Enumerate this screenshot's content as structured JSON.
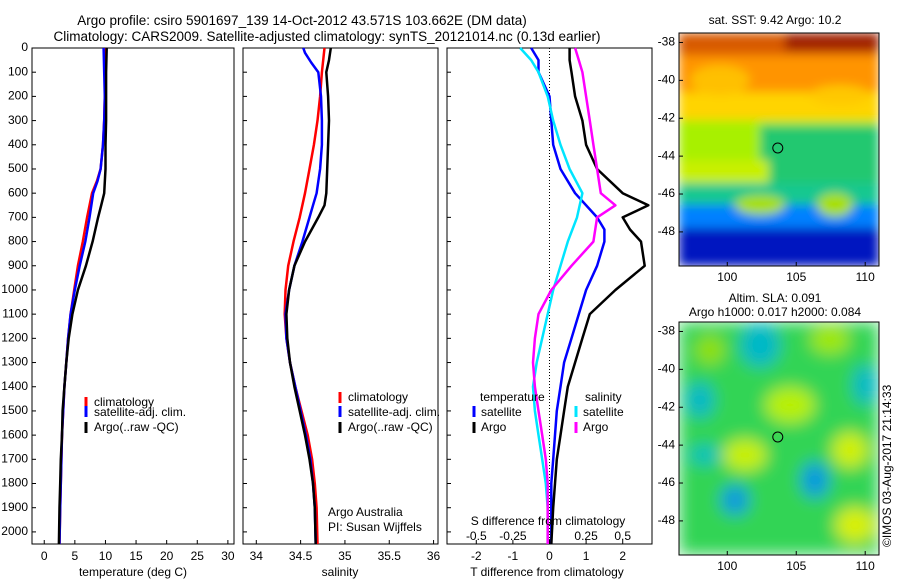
{
  "title": {
    "line1": "Argo profile: csiro 5901697_139 14-Oct-2012 43.571S 103.662E (DM data)",
    "line2": "Climatology: CARS2009. Satellite-adjusted climatology: synTS_20121014.nc (0.13d earlier)"
  },
  "colors": {
    "climatology": "#ff0000",
    "satellite": "#0000ff",
    "argo": "#000000",
    "sat_salinity": "#00e5ff",
    "argo_salinity": "#ff00ff"
  },
  "chart_data": [
    {
      "type": "line",
      "panel": "temperature",
      "xlabel": "temperature (deg C)",
      "xlim": [
        -2,
        31
      ],
      "ylim": [
        2050,
        0
      ],
      "xticks": [
        "0",
        "5",
        "10",
        "15",
        "20",
        "25",
        "30"
      ],
      "yticks": [
        "0",
        "100",
        "200",
        "300",
        "400",
        "500",
        "600",
        "700",
        "800",
        "900",
        "1000",
        "1100",
        "1200",
        "1300",
        "1400",
        "1500",
        "1600",
        "1700",
        "1800",
        "1900",
        "2000"
      ],
      "legend": [
        "climatology",
        "satellite-adj. clim.",
        "Argo(..raw -QC)"
      ],
      "series": [
        {
          "name": "climatology",
          "color": "#ff0000",
          "y": [
            0,
            100,
            200,
            300,
            400,
            500,
            550,
            600,
            700,
            800,
            900,
            1000,
            1100,
            1200,
            1300,
            1400,
            1500,
            1600,
            1700,
            1800,
            1900,
            2050
          ],
          "x": [
            10.0,
            10.0,
            9.9,
            9.8,
            9.6,
            9.2,
            8.6,
            7.8,
            7.0,
            6.3,
            5.5,
            4.9,
            4.3,
            3.9,
            3.6,
            3.3,
            3.1,
            2.9,
            2.8,
            2.7,
            2.6,
            2.5
          ]
        },
        {
          "name": "satellite-adj. clim.",
          "color": "#0000ff",
          "y": [
            0,
            100,
            200,
            300,
            400,
            500,
            550,
            600,
            700,
            800,
            900,
            1000,
            1100,
            1200,
            1300,
            1400,
            1500,
            1600,
            1700,
            1800,
            1900,
            2050
          ],
          "x": [
            9.7,
            9.8,
            9.9,
            9.8,
            9.6,
            9.2,
            8.7,
            8.0,
            7.4,
            6.7,
            5.8,
            5.0,
            4.3,
            3.9,
            3.6,
            3.3,
            3.1,
            2.9,
            2.8,
            2.7,
            2.6,
            2.5
          ]
        },
        {
          "name": "Argo(..raw -QC)",
          "color": "#000000",
          "y": [
            0,
            100,
            200,
            300,
            400,
            500,
            600,
            650,
            700,
            800,
            900,
            1000,
            1100,
            1200,
            1300,
            1400,
            1500,
            1600,
            1700,
            1800,
            1900,
            2050
          ],
          "x": [
            10.2,
            10.1,
            10.1,
            10.1,
            10.0,
            10.0,
            9.8,
            9.3,
            8.8,
            7.9,
            6.8,
            5.5,
            4.6,
            4.0,
            3.6,
            3.3,
            3.0,
            2.9,
            2.7,
            2.6,
            2.5,
            2.4
          ]
        }
      ]
    },
    {
      "type": "line",
      "panel": "salinity",
      "xlabel": "salinity",
      "xlim": [
        33.85,
        36.05
      ],
      "ylim": [
        2050,
        0
      ],
      "xticks": [
        "34",
        "34.5",
        "35",
        "35.5",
        "36"
      ],
      "legend": [
        "climatology",
        "satellite-adj. clim.",
        "Argo(..raw -QC)"
      ],
      "annotation": [
        "Argo Australia",
        "PI: Susan Wijffels"
      ],
      "series": [
        {
          "name": "climatology",
          "color": "#ff0000",
          "y": [
            0,
            100,
            200,
            300,
            400,
            500,
            600,
            700,
            800,
            900,
            1000,
            1100,
            1200,
            1300,
            1400,
            1500,
            1600,
            1700,
            1800,
            1900,
            2050
          ],
          "x": [
            34.77,
            34.74,
            34.72,
            34.69,
            34.65,
            34.6,
            34.55,
            34.49,
            34.42,
            34.36,
            34.33,
            34.32,
            34.34,
            34.38,
            34.44,
            34.51,
            34.58,
            34.63,
            34.66,
            34.68,
            34.69
          ]
        },
        {
          "name": "satellite-adj. clim.",
          "color": "#0000ff",
          "y": [
            0,
            20,
            60,
            100,
            200,
            300,
            400,
            500,
            600,
            650,
            700,
            800,
            900,
            1000,
            1100,
            1200,
            1300,
            1400,
            1500,
            1600,
            1700,
            1800,
            1900,
            2050
          ],
          "x": [
            34.53,
            34.55,
            34.62,
            34.7,
            34.73,
            34.74,
            34.74,
            34.72,
            34.68,
            34.64,
            34.6,
            34.52,
            34.43,
            34.37,
            34.33,
            34.34,
            34.38,
            34.44,
            34.5,
            34.56,
            34.61,
            34.64,
            34.66,
            34.67
          ]
        },
        {
          "name": "Argo(..raw -QC)",
          "color": "#000000",
          "y": [
            0,
            50,
            100,
            200,
            300,
            400,
            500,
            600,
            650,
            700,
            800,
            900,
            1000,
            1100,
            1200,
            1300,
            1400,
            1500,
            1600,
            1700,
            1800,
            1900,
            2050
          ],
          "x": [
            34.84,
            34.82,
            34.79,
            34.81,
            34.82,
            34.81,
            34.8,
            34.79,
            34.77,
            34.7,
            34.55,
            34.43,
            34.37,
            34.34,
            34.35,
            34.38,
            34.43,
            34.49,
            34.55,
            34.6,
            34.64,
            34.66,
            34.67
          ]
        }
      ]
    },
    {
      "type": "line",
      "panel": "differences",
      "xlabel": "T difference from climatology",
      "xlabel_top": "S difference from climatology",
      "xlim": [
        -2.8,
        2.8
      ],
      "ylim": [
        2050,
        0
      ],
      "xticks": [
        "-2",
        "-1",
        "0",
        "1",
        "2"
      ],
      "xticks_top": [
        "-0.5",
        "-0.25",
        "0",
        "0.25",
        "0.5"
      ],
      "legend_headers": [
        "temperature",
        "salinity"
      ],
      "legend": [
        "satellite",
        "Argo",
        "satellite",
        "Argo"
      ],
      "series": [
        {
          "name": "satellite",
          "color": "#0000ff",
          "y": [
            0,
            50,
            100,
            200,
            300,
            400,
            500,
            600,
            700,
            750,
            800,
            900,
            1000,
            1100,
            1200,
            1300,
            1400,
            1500,
            1600,
            1700,
            1800,
            1900,
            2050
          ],
          "x": [
            -0.5,
            -0.3,
            -0.3,
            0.0,
            0.05,
            0.1,
            0.3,
            0.7,
            1.3,
            1.5,
            1.5,
            1.3,
            1.0,
            0.8,
            0.6,
            0.4,
            0.3,
            0.2,
            0.15,
            0.1,
            0.05,
            0.05,
            0.05
          ]
        },
        {
          "name": "Argo",
          "color": "#000000",
          "y": [
            0,
            50,
            100,
            200,
            300,
            400,
            500,
            600,
            650,
            700,
            750,
            800,
            900,
            1000,
            1100,
            1200,
            1300,
            1400,
            1500,
            1600,
            1700,
            1800,
            1900,
            2050
          ],
          "x": [
            0.55,
            0.55,
            0.6,
            0.7,
            0.9,
            1.0,
            1.3,
            2.0,
            2.7,
            2.0,
            2.2,
            2.5,
            2.6,
            1.8,
            1.1,
            0.9,
            0.7,
            0.5,
            0.4,
            0.3,
            0.2,
            0.15,
            0.1,
            0.05
          ]
        },
        {
          "name": "satellite",
          "color": "#00e5ff",
          "y": [
            0,
            50,
            100,
            200,
            300,
            400,
            500,
            600,
            700,
            800,
            900,
            1000,
            1100,
            1200,
            1300,
            1400,
            1500,
            1600,
            1700,
            1800,
            1900,
            2050
          ],
          "x": [
            -0.8,
            -0.5,
            -0.3,
            -0.05,
            0.1,
            0.3,
            0.55,
            0.9,
            0.75,
            0.5,
            0.3,
            0.1,
            -0.05,
            -0.2,
            -0.35,
            -0.45,
            -0.4,
            -0.3,
            -0.2,
            -0.1,
            -0.05,
            -0.05
          ]
        },
        {
          "name": "Argo",
          "color": "#ff00ff",
          "y": [
            0,
            50,
            100,
            200,
            300,
            400,
            500,
            600,
            650,
            700,
            800,
            900,
            1000,
            1100,
            1200,
            1300,
            1400,
            1500,
            1600,
            1700,
            1800,
            1900,
            2050
          ],
          "x": [
            0.7,
            0.8,
            0.9,
            1.0,
            1.1,
            1.2,
            1.3,
            1.4,
            1.8,
            1.3,
            1.2,
            0.6,
            0.05,
            -0.3,
            -0.4,
            -0.45,
            -0.4,
            -0.3,
            -0.2,
            -0.1,
            -0.05,
            -0.05,
            -0.05
          ]
        }
      ]
    },
    {
      "type": "heatmap",
      "panel": "sst-map",
      "title": "sat. SST: 9.42 Argo: 10.2",
      "xticks": [
        "100",
        "105",
        "110"
      ],
      "yticks": [
        "-38",
        "-40",
        "-42",
        "-44",
        "-46",
        "-48"
      ],
      "xlim": [
        96.5,
        111
      ],
      "ylim": [
        -49.8,
        -37.5
      ],
      "marker": {
        "lon": 103.662,
        "lat": -43.571
      }
    },
    {
      "type": "heatmap",
      "panel": "sla-map",
      "title_lines": [
        "Altim. SLA: 0.091",
        "Argo h1000: 0.017 h2000: 0.084"
      ],
      "xticks": [
        "100",
        "105",
        "110"
      ],
      "yticks": [
        "-38",
        "-40",
        "-42",
        "-44",
        "-46",
        "-48"
      ],
      "xlim": [
        96.5,
        111
      ],
      "ylim": [
        -49.8,
        -37.5
      ],
      "marker": {
        "lon": 103.662,
        "lat": -43.571
      }
    }
  ],
  "credit": "©IMOS 03-Aug-2017 21:14:33"
}
